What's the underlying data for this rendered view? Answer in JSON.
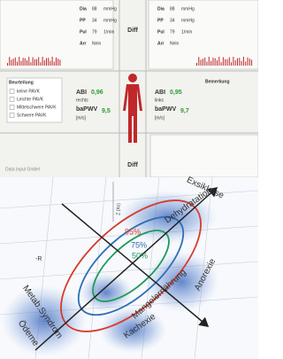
{
  "report": {
    "left_vitals": [
      [
        "Dia",
        "88",
        "mmHg"
      ],
      [
        "PP",
        "34",
        "mmHg"
      ],
      [
        "Pul",
        "79",
        "1/min"
      ],
      [
        "Arr",
        "Nein"
      ]
    ],
    "right_vitals": [
      [
        "Dia",
        "88",
        "mmHg"
      ],
      [
        "PP",
        "34",
        "mmHg"
      ],
      [
        "Pul",
        "79",
        "1/min"
      ],
      [
        "Arr",
        "Nein"
      ]
    ],
    "center_top": "Diff",
    "assessment": {
      "title": "Beurteilung",
      "items": [
        "keine PAVK",
        "Leichte PAVK",
        "Mittelschwere PAVK",
        "Schwere PAVK"
      ]
    },
    "right_side": {
      "abi_label": "ABI",
      "abi": "0,96",
      "side": "rechts",
      "pwv_label": "baPWV",
      "pwv": "9,5",
      "unit": "[m/s]"
    },
    "left_side": {
      "abi_label": "ABI",
      "abi": "0,95",
      "side": "links",
      "pwv_label": "baPWV",
      "pwv": "9,7",
      "unit": "[m/s]"
    },
    "remark": "Bemerkung",
    "center_bottom": "Diff",
    "company": "Data Input GmbH"
  },
  "graph": {
    "percentiles": [
      "95%",
      "75%",
      "50%"
    ],
    "labels": {
      "exsikkose": "Exsikkose",
      "dehydratation": "Dehydratation",
      "anorexie": "Anorexie",
      "mangelernaehrung": "Mangelernährung",
      "kachexie": "Kachexie",
      "metab": "Metab.Syndrom",
      "oedeme": "Ödeme",
      "z_axis": "Z (Xc)",
      "r_axis": "-R"
    }
  }
}
